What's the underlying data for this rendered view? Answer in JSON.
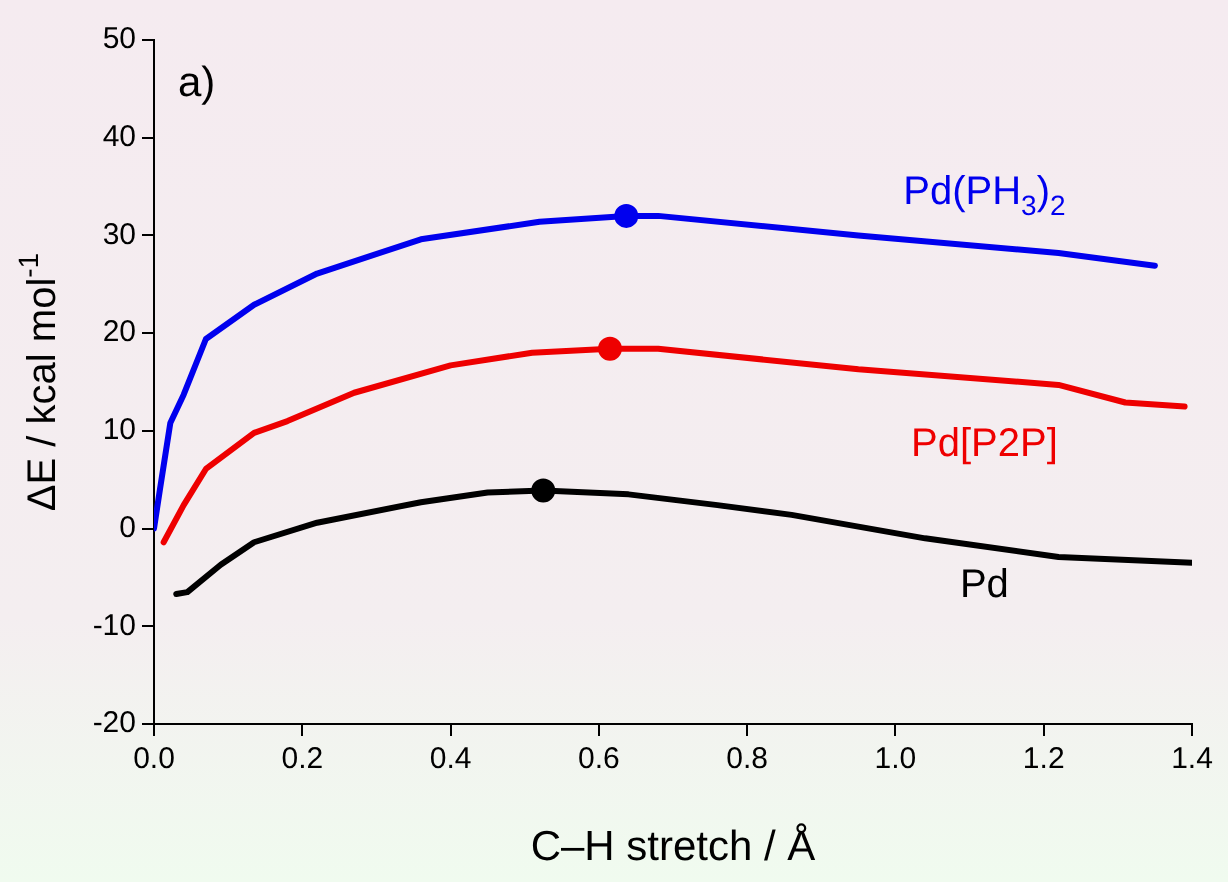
{
  "chart_data": {
    "type": "line",
    "xlabel": "C–H stretch / Å",
    "ylabel": "ΔE / kcal mol$^{-1}$",
    "annotations": [
      "a)"
    ],
    "xlim": [
      0,
      1.4
    ],
    "xticks": [
      {
        "value": 0,
        "label": "0.0"
      },
      {
        "value": 0.2,
        "label": "0.2"
      },
      {
        "value": 0.4,
        "label": "0.4"
      },
      {
        "value": 0.6,
        "label": "0.6"
      },
      {
        "value": 0.8,
        "label": "0.8"
      },
      {
        "value": 1,
        "label": "1.0"
      },
      {
        "value": 1.2,
        "label": "1.2"
      },
      {
        "value": 1.4,
        "label": "1.4"
      }
    ],
    "ylim": [
      -20,
      50
    ],
    "yticks": [
      -20,
      -10,
      0,
      10,
      20,
      30,
      40,
      50
    ],
    "grid": false,
    "legend": false,
    "series": [
      {
        "name": "Pd(PH$_{3}$)$_{2}$",
        "color": "#0000ee",
        "x": [
          0,
          0.008,
          0.022,
          0.04,
          0.07,
          0.135,
          0.22,
          0.36,
          0.52,
          0.637,
          0.68,
          0.95,
          1.22,
          1.35
        ],
        "values": [
          0,
          4,
          10.8,
          13.7,
          19.4,
          22.9,
          26.1,
          29.6,
          31.4,
          32,
          32,
          30,
          28.2,
          26.9
        ]
      },
      {
        "name": "Pd[P2P]",
        "color": "#ee0000",
        "x": [
          0.013,
          0.04,
          0.07,
          0.135,
          0.18,
          0.27,
          0.4,
          0.51,
          0.615,
          0.68,
          0.95,
          1.22,
          1.31,
          1.39
        ],
        "values": [
          -1.4,
          2.4,
          6.1,
          9.8,
          11,
          13.9,
          16.7,
          18,
          18.4,
          18.4,
          16.3,
          14.7,
          12.9,
          12.5
        ]
      },
      {
        "name": "Pd",
        "color": "#000000",
        "x": [
          0.03,
          0.045,
          0.09,
          0.135,
          0.22,
          0.36,
          0.45,
          0.525,
          0.64,
          0.76,
          0.86,
          1.04,
          1.22,
          1.4
        ],
        "values": [
          -6.7,
          -6.5,
          -3.7,
          -1.4,
          0.6,
          2.7,
          3.7,
          3.9,
          3.5,
          2.4,
          1.4,
          -1,
          -2.9,
          -3.5
        ]
      },
      {
        "type": "scatter",
        "marker": "circle",
        "color": "#0000ee",
        "x": [
          0.637
        ],
        "values": [
          32
        ]
      },
      {
        "type": "scatter",
        "marker": "circle",
        "color": "#ee0000",
        "x": [
          0.615
        ],
        "values": [
          18.4
        ]
      },
      {
        "type": "scatter",
        "marker": "circle",
        "color": "#000000",
        "x": [
          0.525
        ],
        "values": [
          3.9
        ]
      }
    ]
  }
}
